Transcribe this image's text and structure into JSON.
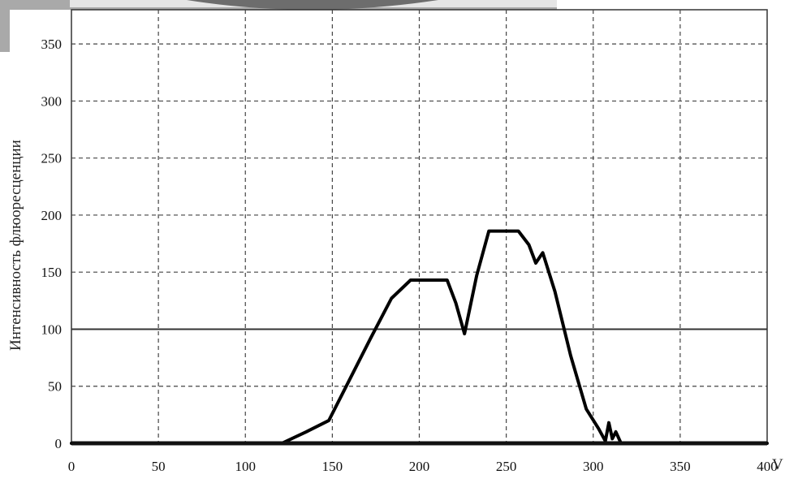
{
  "chart_data": {
    "type": "line",
    "title": "",
    "xlabel": "V",
    "ylabel": "Интенсивность флюоресценции",
    "xlim": [
      0,
      400
    ],
    "ylim": [
      0,
      380
    ],
    "grid": true,
    "x_ticks": [
      0,
      50,
      100,
      150,
      200,
      250,
      300,
      350,
      400
    ],
    "x_tick_labels": [
      "0",
      "50",
      "100",
      "150",
      "200",
      "250",
      "300",
      "350",
      "400"
    ],
    "y_ticks": [
      0,
      50,
      100,
      150,
      200,
      250,
      300,
      350
    ],
    "y_tick_labels": [
      "0",
      "50",
      "100",
      "150",
      "200",
      "250",
      "300",
      "350"
    ],
    "series": [
      {
        "color": "#000000",
        "x": [
          0,
          121,
          135,
          148,
          160,
          172,
          184,
          195,
          205,
          216,
          221,
          226,
          233,
          240,
          245,
          257,
          263,
          267,
          271,
          278,
          287,
          296,
          303,
          307,
          309,
          311,
          313,
          316,
          400
        ],
        "y": [
          0,
          0,
          10,
          20,
          56,
          92,
          127,
          143,
          143,
          143,
          123,
          96,
          147,
          186,
          186,
          186,
          174,
          158,
          167,
          133,
          77,
          30,
          13,
          2,
          18,
          4,
          10,
          0,
          0
        ]
      }
    ],
    "threshold": {
      "y": 100,
      "color": "#333333"
    }
  }
}
